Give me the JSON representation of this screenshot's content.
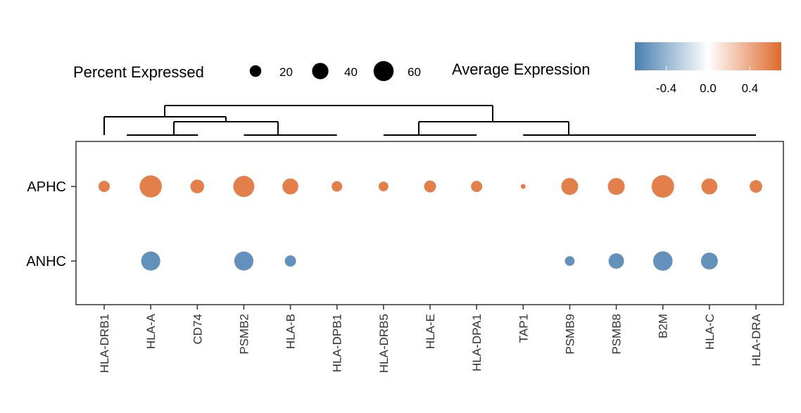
{
  "chart_data": {
    "type": "dot",
    "categories": [
      "HLA-DRB1",
      "HLA-A",
      "CD74",
      "PSMB2",
      "HLA-B",
      "HLA-DPB1",
      "HLA-DRB5",
      "HLA-E",
      "HLA-DPA1",
      "TAP1",
      "PSMB9",
      "PSMB8",
      "B2M",
      "HLA-C",
      "HLA-DRA"
    ],
    "groups": [
      "APHC",
      "ANHC"
    ],
    "size_legend": {
      "title": "Percent Expressed",
      "values": [
        20,
        40,
        60
      ],
      "labels": [
        "20",
        "40",
        "60"
      ]
    },
    "color_legend": {
      "title": "Average Expression",
      "low_color": "#4a7fb0",
      "mid_color": "#ffffff",
      "high_color": "#dd6a2c",
      "range": [
        -0.7,
        0.7
      ],
      "ticks": [
        -0.4,
        0.0,
        0.4
      ],
      "tick_labels": [
        "-0.4",
        "0.0",
        "0.4"
      ]
    },
    "series": [
      {
        "group": "APHC",
        "percent": [
          16,
          62,
          24,
          56,
          32,
          14,
          12,
          18,
          16,
          3,
          36,
          36,
          64,
          32,
          20
        ],
        "expression": [
          0.6,
          0.6,
          0.6,
          0.6,
          0.6,
          0.6,
          0.6,
          0.6,
          0.6,
          0.6,
          0.6,
          0.6,
          0.6,
          0.6,
          0.6
        ]
      },
      {
        "group": "ANHC",
        "percent": [
          null,
          46,
          null,
          46,
          16,
          null,
          null,
          null,
          null,
          null,
          12,
          30,
          48,
          36,
          null
        ],
        "expression": [
          null,
          -0.6,
          null,
          -0.6,
          -0.6,
          null,
          null,
          null,
          null,
          null,
          -0.6,
          -0.6,
          -0.6,
          -0.6,
          null
        ]
      }
    ],
    "dendrogram": {
      "leaf_order": [
        "HLA-DRB1",
        "HLA-A",
        "CD74",
        "PSMB2",
        "HLA-B",
        "HLA-DPB1",
        "HLA-DRB5",
        "HLA-E",
        "HLA-DPA1",
        "TAP1",
        "PSMB9",
        "PSMB8",
        "B2M",
        "HLA-C",
        "HLA-DRA"
      ]
    },
    "grid": false
  }
}
